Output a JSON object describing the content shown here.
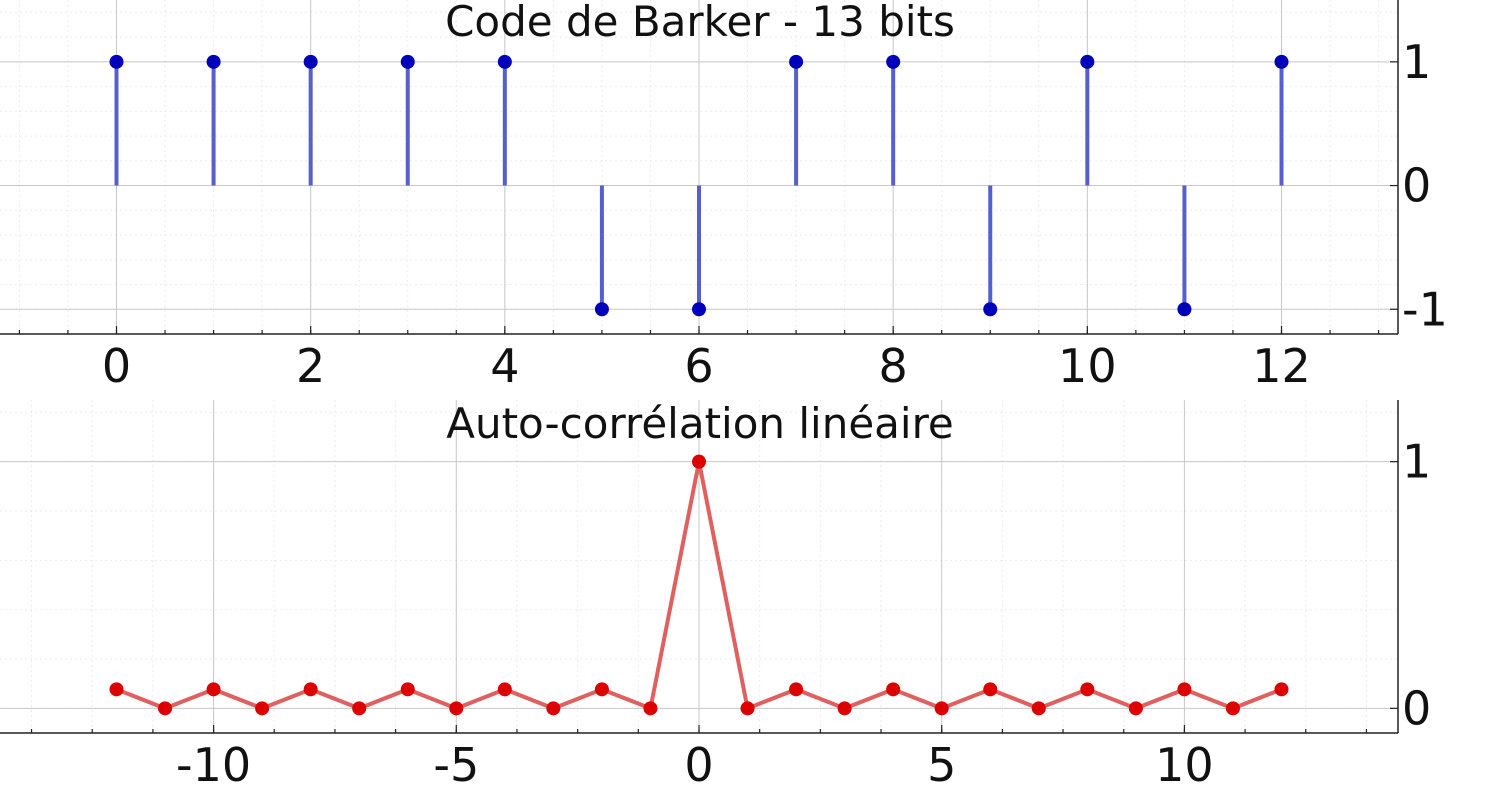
{
  "chart_data": [
    {
      "type": "stem",
      "title": "Code de Barker - 13 bits",
      "x": [
        0,
        1,
        2,
        3,
        4,
        5,
        6,
        7,
        8,
        9,
        10,
        11,
        12
      ],
      "values": [
        1,
        1,
        1,
        1,
        1,
        -1,
        -1,
        1,
        1,
        -1,
        1,
        -1,
        1
      ],
      "xlim": [
        -1.2,
        13.2
      ],
      "ylim": [
        -1.2,
        1.5
      ],
      "xticks": [
        "0",
        "2",
        "4",
        "6",
        "8",
        "10",
        "12"
      ],
      "yticks": [
        "1",
        "0",
        "-1"
      ],
      "color": "#0000bb",
      "stem_color": "#5560cc",
      "grid": true,
      "y_axis_side": "right"
    },
    {
      "type": "line",
      "title": "Auto-corrélation linéaire",
      "x": [
        -12,
        -11,
        -10,
        -9,
        -8,
        -7,
        -6,
        -5,
        -4,
        -3,
        -2,
        -1,
        0,
        1,
        2,
        3,
        4,
        5,
        6,
        7,
        8,
        9,
        10,
        11,
        12
      ],
      "values": [
        0.077,
        0,
        0.077,
        0,
        0.077,
        0,
        0.077,
        0,
        0.077,
        0,
        0.077,
        0,
        1,
        0,
        0.077,
        0,
        0.077,
        0,
        0.077,
        0,
        0.077,
        0,
        0.077,
        0,
        0.077
      ],
      "xlim": [
        -14.4,
        14.4
      ],
      "ylim": [
        -0.1,
        1.25
      ],
      "xticks": [
        "-10",
        "-5",
        "0",
        "5",
        "10"
      ],
      "yticks": [
        "1",
        "0"
      ],
      "color": "#dd0000",
      "line_color": "#e06060",
      "grid": true,
      "y_axis_side": "right"
    }
  ]
}
